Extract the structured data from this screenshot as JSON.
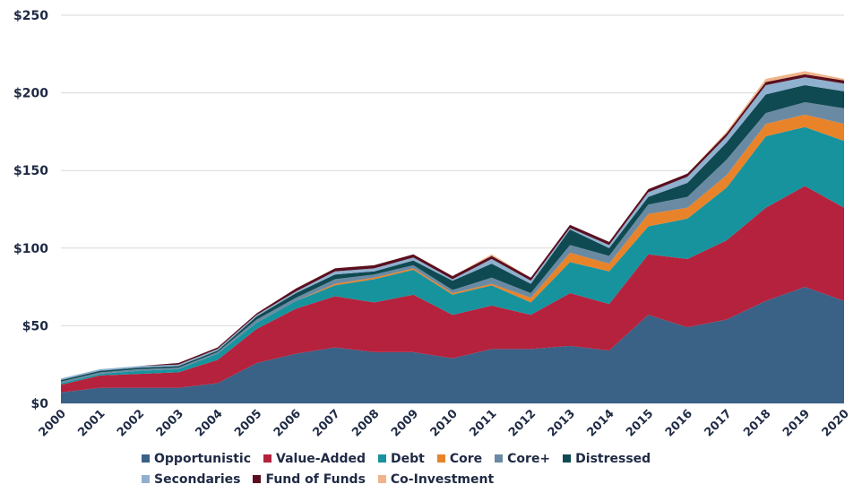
{
  "chart_data": {
    "type": "area",
    "stacked": true,
    "x": [
      "2000",
      "2001",
      "2002",
      "2003",
      "2004",
      "2005",
      "2006",
      "2007",
      "2008",
      "2009",
      "2010",
      "2011",
      "2012",
      "2013",
      "2014",
      "2015",
      "2016",
      "2017",
      "2018",
      "2019",
      "2020"
    ],
    "y_ticks": [
      "$0",
      "$50",
      "$100",
      "$150",
      "$200",
      "$250"
    ],
    "ylim": [
      0,
      250
    ],
    "grid": "horizontal",
    "legend_position": "bottom",
    "series": [
      {
        "name": "Opportunistic",
        "color": "#3a6186",
        "values": [
          7,
          10,
          10,
          10,
          13,
          26,
          32,
          36,
          33,
          33,
          29,
          35,
          35,
          37,
          34,
          57,
          49,
          54,
          66,
          75,
          66
        ]
      },
      {
        "name": "Value-Added",
        "color": "#b5223d",
        "values": [
          5,
          8,
          9,
          10,
          15,
          22,
          29,
          33,
          32,
          37,
          28,
          28,
          22,
          34,
          30,
          39,
          44,
          51,
          60,
          65,
          60
        ]
      },
      {
        "name": "Debt",
        "color": "#17939e",
        "values": [
          1,
          1,
          2,
          2,
          4,
          4,
          5,
          7,
          15,
          16,
          13,
          13,
          8,
          20,
          21,
          18,
          26,
          34,
          46,
          38,
          43
        ]
      },
      {
        "name": "Core",
        "color": "#e8832a",
        "values": [
          0,
          0,
          0,
          0,
          0,
          0,
          0,
          1,
          1,
          1,
          1,
          1,
          3,
          6,
          5,
          8,
          7,
          8,
          8,
          8,
          11
        ]
      },
      {
        "name": "Core+",
        "color": "#6a8aa3",
        "values": [
          1,
          1,
          1,
          1,
          1,
          2,
          2,
          3,
          2,
          2,
          2,
          4,
          3,
          5,
          5,
          6,
          7,
          10,
          7,
          8,
          10
        ]
      },
      {
        "name": "Distressed",
        "color": "#0f4a52",
        "values": [
          1,
          1,
          1,
          1,
          1,
          2,
          3,
          3,
          2,
          3,
          6,
          9,
          6,
          10,
          5,
          5,
          9,
          11,
          12,
          11,
          11
        ]
      },
      {
        "name": "Secondaries",
        "color": "#8fb0cf",
        "values": [
          1,
          1,
          1,
          1,
          1,
          1,
          1,
          2,
          2,
          2,
          1,
          3,
          2,
          1,
          2,
          3,
          4,
          4,
          6,
          5,
          5
        ]
      },
      {
        "name": "Fund of Funds",
        "color": "#5a0f1e",
        "values": [
          0,
          0,
          0,
          1,
          1,
          1,
          2,
          2,
          2,
          2,
          2,
          2,
          2,
          2,
          2,
          2,
          2,
          2,
          2,
          2,
          2
        ]
      },
      {
        "name": "Co-Investment",
        "color": "#f0b48a",
        "values": [
          0,
          0,
          0,
          0,
          0,
          0,
          0,
          0,
          0,
          0,
          0,
          1,
          0,
          0,
          0,
          0,
          0,
          1,
          2,
          2,
          1
        ]
      }
    ]
  }
}
